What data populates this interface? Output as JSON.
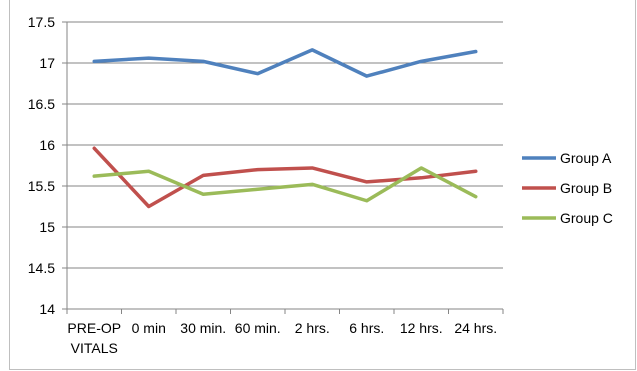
{
  "chart_data": {
    "type": "line",
    "title": "",
    "xlabel": "",
    "ylabel": "",
    "ylim": [
      14,
      17.5
    ],
    "yticks": [
      "14",
      "14.5",
      "15",
      "15.5",
      "16",
      "16.5",
      "17",
      "17.5"
    ],
    "categories": [
      [
        "PRE-OP",
        "VITALS"
      ],
      [
        "0 min"
      ],
      [
        "30 min."
      ],
      [
        "60 min."
      ],
      [
        "2 hrs."
      ],
      [
        "6 hrs."
      ],
      [
        "12 hrs."
      ],
      [
        "24 hrs."
      ]
    ],
    "grid": true,
    "legend_position": "right",
    "series": [
      {
        "name": "Group A",
        "color": "#4f81bd",
        "values": [
          17.02,
          17.06,
          17.02,
          16.87,
          17.16,
          16.84,
          17.02,
          17.14
        ]
      },
      {
        "name": "Group B",
        "color": "#c0504d",
        "values": [
          15.96,
          15.25,
          15.63,
          15.7,
          15.72,
          15.55,
          15.6,
          15.68
        ]
      },
      {
        "name": "Group C",
        "color": "#9bbb59",
        "values": [
          15.62,
          15.68,
          15.4,
          15.46,
          15.52,
          15.32,
          15.72,
          15.37
        ]
      }
    ]
  }
}
